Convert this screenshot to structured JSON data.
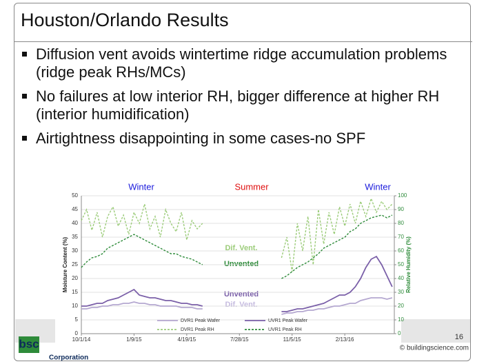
{
  "slide": {
    "title": "Houston/Orlando Results",
    "bullets": [
      "Diffusion vent avoids wintertime ridge accumulation problems (ridge peak RHs/MCs)",
      "No failures at low interior RH, bigger difference at higher RH (interior humidification)",
      "Airtightness disappointing in some cases-no SPF"
    ],
    "logo": "bsc",
    "company": "Corporation",
    "page_number": "16",
    "copyright": "© buildingscience.com"
  },
  "chart_data": {
    "type": "line",
    "y_label": "Moisture Content (%)",
    "y2_label": "Relative Humidity (%)",
    "annotations": [
      "Winter",
      "Summer",
      "Winter",
      "Dif. Vent.",
      "Unvented",
      "Unvented",
      "Dif. Vent."
    ],
    "x": [
      "10/1/14",
      "10/11/14",
      "10/21/14",
      "10/31/14",
      "11/10/14",
      "11/20/14",
      "11/30/14",
      "12/10/14",
      "12/20/14",
      "12/30/14",
      "1/9/15",
      "1/19/15",
      "1/29/15",
      "2/8/15",
      "2/18/15",
      "2/28/15",
      "3/10/15",
      "3/20/15",
      "3/30/15",
      "4/9/15",
      "4/19/15",
      "4/29/15",
      "5/9/15",
      "5/19/15",
      "5/29/15",
      "6/8/15",
      "6/18/15",
      "6/28/15",
      "7/8/15",
      "7/18/15",
      "7/28/15",
      "8/7/15",
      "8/17/15",
      "8/27/15",
      "9/6/15",
      "9/16/15",
      "9/26/15",
      "10/6/15",
      "10/16/15",
      "10/26/15",
      "11/5/15",
      "11/15/15",
      "11/25/15",
      "12/5/15",
      "12/15/15",
      "12/25/15",
      "1/4/16",
      "1/14/16",
      "1/24/16",
      "2/3/16",
      "2/13/16",
      "2/23/16",
      "3/4/16",
      "3/14/16",
      "3/24/16",
      "4/3/16",
      "4/13/16",
      "4/23/16",
      "5/3/16",
      "5/13/16"
    ],
    "xlim": [
      "10/1/14",
      "5/17/16"
    ],
    "xticks": [
      "10/1/14",
      "1/9/15",
      "4/19/15",
      "7/28/15",
      "11/5/15",
      "2/13/16"
    ],
    "ylim": [
      0,
      50
    ],
    "yticks": [
      0,
      5,
      10,
      15,
      20,
      25,
      30,
      35,
      40,
      45,
      50
    ],
    "y2lim": [
      0,
      100
    ],
    "y2ticks": [
      0,
      10,
      20,
      30,
      40,
      50,
      60,
      70,
      80,
      90,
      100
    ],
    "grid": true,
    "series": [
      {
        "name": "DVR1 Peak Wafer",
        "color": "#b4a7d0",
        "dash": false,
        "values": [
          9,
          9,
          9.5,
          9.5,
          10,
          10,
          10.5,
          10.5,
          11,
          11,
          11.5,
          11,
          11,
          10.5,
          10.5,
          10,
          10,
          10,
          10,
          9.5,
          9.5,
          9.5,
          9,
          9,
          null,
          null,
          null,
          null,
          null,
          null,
          null,
          null,
          null,
          null,
          null,
          null,
          null,
          null,
          7,
          7.5,
          7.5,
          8,
          8,
          8.5,
          8.5,
          9,
          9,
          9.5,
          10,
          10,
          10.5,
          11,
          11,
          12,
          12.5,
          13,
          13,
          13,
          12.5,
          13
        ]
      },
      {
        "name": "UVR1 Peak Wafer",
        "color": "#7a5fa8",
        "dash": false,
        "values": [
          10,
          10,
          10.5,
          11,
          11,
          12,
          12.5,
          13,
          14,
          15,
          16,
          14,
          13.5,
          13,
          13,
          12.5,
          12,
          12,
          11.5,
          11,
          11,
          10.5,
          10.5,
          10,
          null,
          null,
          null,
          null,
          null,
          null,
          null,
          null,
          null,
          null,
          null,
          null,
          null,
          null,
          8,
          8,
          8.5,
          9,
          9,
          9.5,
          10,
          10.5,
          11,
          12,
          13,
          14,
          14,
          15,
          17,
          20,
          24,
          27,
          28,
          25,
          21,
          17
        ]
      },
      {
        "name": "DVR1 Peak RH",
        "color": "#9ccc7a",
        "dash": true,
        "axis": "y2",
        "values": [
          82,
          90,
          75,
          88,
          70,
          85,
          92,
          78,
          86,
          72,
          88,
          80,
          94,
          76,
          85,
          70,
          90,
          80,
          74,
          88,
          68,
          82,
          76,
          80,
          null,
          null,
          null,
          null,
          null,
          null,
          null,
          null,
          null,
          null,
          null,
          null,
          null,
          null,
          55,
          70,
          45,
          80,
          60,
          85,
          50,
          90,
          65,
          88,
          72,
          92,
          78,
          94,
          80,
          96,
          85,
          98,
          88,
          96,
          90,
          94
        ]
      },
      {
        "name": "UVR1 Peak RH",
        "color": "#2e8b3a",
        "dash": true,
        "axis": "y2",
        "values": [
          48,
          52,
          55,
          56,
          58,
          62,
          64,
          66,
          68,
          70,
          72,
          70,
          68,
          66,
          64,
          62,
          60,
          58,
          58,
          56,
          55,
          54,
          52,
          50,
          null,
          null,
          null,
          null,
          null,
          null,
          null,
          null,
          null,
          null,
          null,
          null,
          null,
          null,
          40,
          42,
          45,
          48,
          50,
          52,
          55,
          58,
          62,
          64,
          66,
          68,
          70,
          74,
          76,
          80,
          82,
          84,
          85,
          86,
          84,
          86
        ]
      }
    ]
  }
}
